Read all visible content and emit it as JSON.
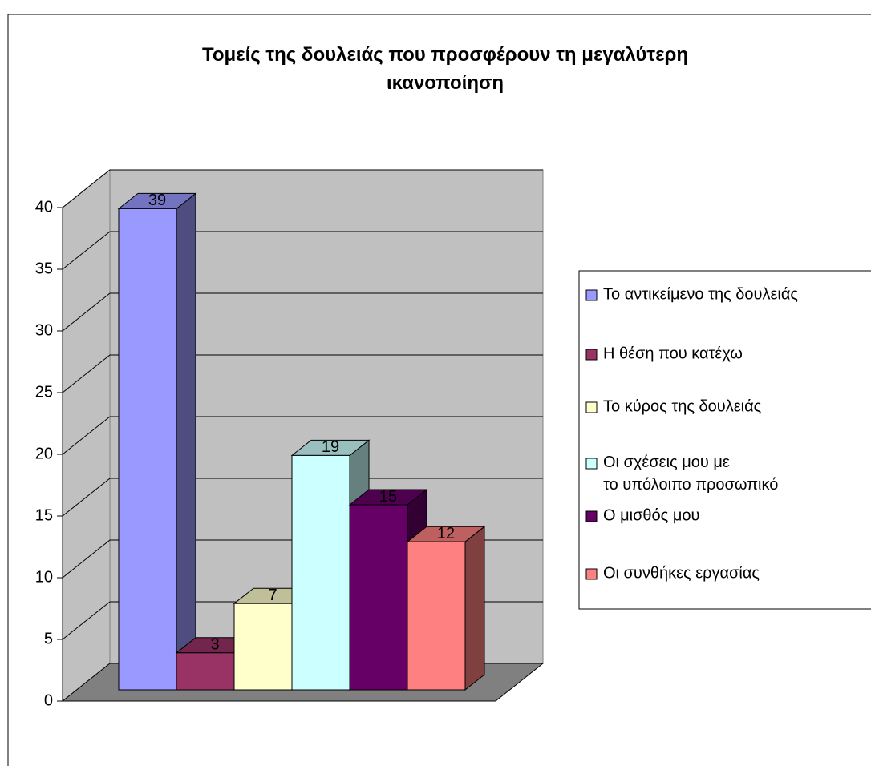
{
  "chart_data": {
    "type": "bar3d",
    "title": "Τομείς της δουλειάς που προσφέρουν τη μεγαλύτερη ικανοποίηση",
    "series": [
      {
        "name": "Το αντικείμενο της δουλειάς",
        "color": "#9999ff",
        "values": [
          39
        ]
      },
      {
        "name": "Η θέση που κατέχω",
        "color": "#993366",
        "values": [
          3
        ]
      },
      {
        "name": "Το κύρος της δουλειάς",
        "color": "#ffffcc",
        "values": [
          7
        ]
      },
      {
        "name": "Οι σχέσεις μου με το υπόλοιπο προσωπικό",
        "color": "#ccffff",
        "values": [
          19
        ]
      },
      {
        "name": "Ο μισθός μου",
        "color": "#660066",
        "values": [
          15
        ]
      },
      {
        "name": "Οι συνθήκες εργασίας",
        "color": "#ff8080",
        "values": [
          12
        ]
      }
    ],
    "ylim": [
      0,
      40
    ],
    "yticks": [
      0,
      5,
      10,
      15,
      20,
      25,
      30,
      35,
      40
    ],
    "grid": true,
    "legend": "right"
  }
}
